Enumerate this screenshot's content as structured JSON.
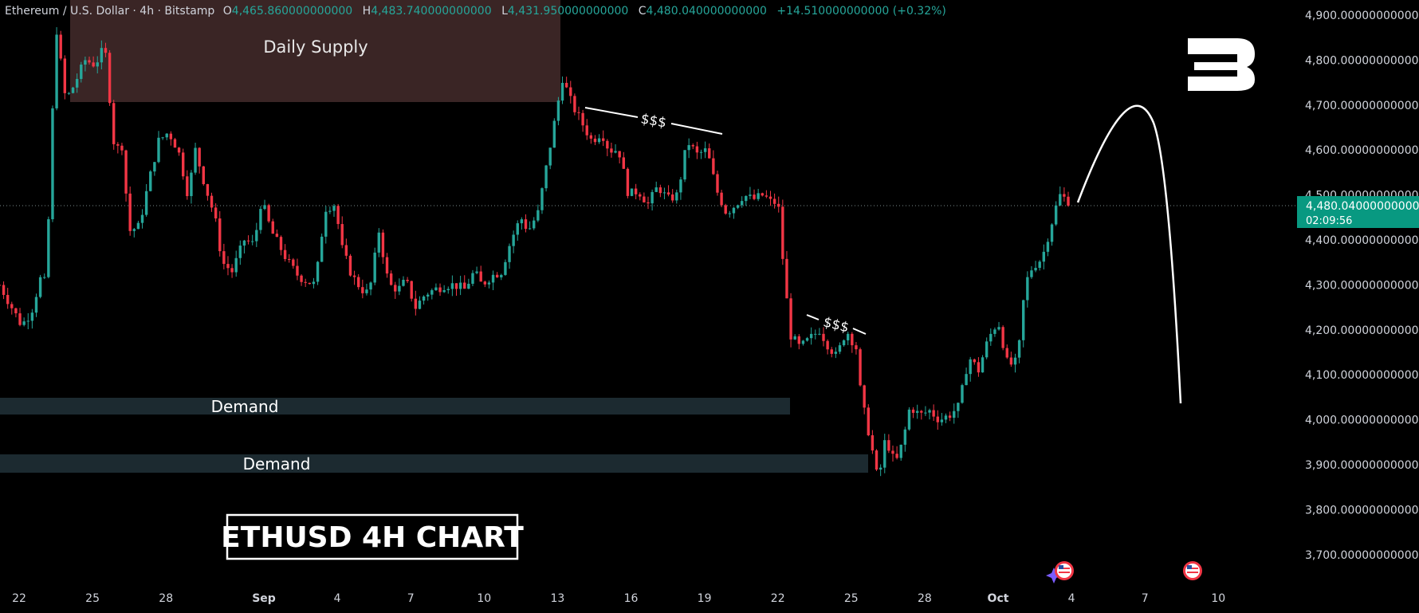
{
  "header": {
    "symbol_title": "Ethereum / U.S. Dollar · 4h · Bitstamp",
    "open_label": "O",
    "open_value": "4,465.860000000000",
    "high_label": "H",
    "high_value": "4,483.740000000000",
    "low_label": "L",
    "low_value": "4,431.950000000000",
    "close_label": "C",
    "close_value": "4,480.040000000000",
    "change": "+14.510000000000 (+0.32%)"
  },
  "price_tag": {
    "price": "4,480.040000000000",
    "countdown": "02:09:56"
  },
  "annotations": {
    "supply_zone": "Daily Supply",
    "demand_upper": "Demand",
    "demand_lower": "Demand",
    "liquidity_upper": "$$$",
    "liquidity_lower": "$$$",
    "chart_label": "ETHUSD 4H CHART"
  },
  "colors": {
    "up": "#26a69a",
    "down": "#f23645",
    "background": "#000000",
    "supply_zone": "#3a2525",
    "demand_zone": "#1c2a30",
    "price_tag": "#089981",
    "text": "#d1d4dc"
  },
  "icons": [
    "brand-logo-icon",
    "us-flag-event-icon",
    "us-flag-event-icon",
    "sparkle-icon"
  ],
  "chart_data": {
    "type": "candlestick",
    "title": "",
    "xlabel": "",
    "ylabel": "",
    "interval": "4h",
    "ylim": [
      3640,
      4940
    ],
    "grid": false,
    "last_price": 4480.04,
    "y_ticks": [
      "4,900.000000000000",
      "4,800.000000000000",
      "4,700.000000000000",
      "4,600.000000000000",
      "4,500.000000000000",
      "4,400.000000000000",
      "4,300.000000000000",
      "4,200.000000000000",
      "4,100.000000000000",
      "4,000.000000000000",
      "3,900.000000000000",
      "3,800.000000000000",
      "3,700.000000000000"
    ],
    "y_tick_values": [
      4900,
      4800,
      4700,
      4600,
      4500,
      4400,
      4300,
      4200,
      4100,
      4000,
      3900,
      3800,
      3700
    ],
    "x_ticks": [
      {
        "label": "22",
        "day": 0
      },
      {
        "label": "25",
        "day": 3
      },
      {
        "label": "28",
        "day": 6
      },
      {
        "label": "Sep",
        "day": 10
      },
      {
        "label": "4",
        "day": 13
      },
      {
        "label": "7",
        "day": 16
      },
      {
        "label": "10",
        "day": 19
      },
      {
        "label": "13",
        "day": 22
      },
      {
        "label": "16",
        "day": 25
      },
      {
        "label": "19",
        "day": 28
      },
      {
        "label": "22",
        "day": 31
      },
      {
        "label": "25",
        "day": 34
      },
      {
        "label": "28",
        "day": 37
      },
      {
        "label": "Oct",
        "day": 40
      },
      {
        "label": "4",
        "day": 43
      },
      {
        "label": "7",
        "day": 46
      },
      {
        "label": "10",
        "day": 49
      }
    ],
    "close_path": [
      [
        -0.8,
        4300
      ],
      [
        0.1,
        4210
      ],
      [
        0.5,
        4240
      ],
      [
        0.9,
        4320
      ],
      [
        1.1,
        4300
      ],
      [
        1.5,
        4880
      ],
      [
        1.9,
        4710
      ],
      [
        2.2,
        4740
      ],
      [
        2.7,
        4800
      ],
      [
        3.1,
        4790
      ],
      [
        3.5,
        4830
      ],
      [
        3.9,
        4600
      ],
      [
        4.2,
        4610
      ],
      [
        4.5,
        4420
      ],
      [
        4.9,
        4430
      ],
      [
        5.3,
        4530
      ],
      [
        5.7,
        4620
      ],
      [
        6.1,
        4640
      ],
      [
        6.5,
        4600
      ],
      [
        6.9,
        4500
      ],
      [
        7.2,
        4600
      ],
      [
        7.6,
        4520
      ],
      [
        8.0,
        4450
      ],
      [
        8.3,
        4350
      ],
      [
        8.7,
        4330
      ],
      [
        9.2,
        4400
      ],
      [
        9.6,
        4390
      ],
      [
        9.9,
        4490
      ],
      [
        10.3,
        4420
      ],
      [
        10.6,
        4390
      ],
      [
        11.0,
        4350
      ],
      [
        11.4,
        4320
      ],
      [
        11.7,
        4310
      ],
      [
        12.1,
        4300
      ],
      [
        12.5,
        4470
      ],
      [
        12.9,
        4480
      ],
      [
        13.2,
        4380
      ],
      [
        13.6,
        4320
      ],
      [
        14.0,
        4290
      ],
      [
        14.3,
        4280
      ],
      [
        14.7,
        4420
      ],
      [
        15.1,
        4300
      ],
      [
        15.5,
        4290
      ],
      [
        15.8,
        4310
      ],
      [
        16.2,
        4250
      ],
      [
        16.6,
        4280
      ],
      [
        17.0,
        4290
      ],
      [
        17.4,
        4300
      ],
      [
        17.8,
        4300
      ],
      [
        18.2,
        4290
      ],
      [
        18.6,
        4330
      ],
      [
        18.9,
        4300
      ],
      [
        19.3,
        4320
      ],
      [
        19.7,
        4330
      ],
      [
        20.1,
        4400
      ],
      [
        20.5,
        4450
      ],
      [
        20.8,
        4420
      ],
      [
        21.2,
        4460
      ],
      [
        21.6,
        4580
      ],
      [
        22.0,
        4700
      ],
      [
        22.2,
        4760
      ],
      [
        22.6,
        4700
      ],
      [
        23.0,
        4660
      ],
      [
        23.4,
        4620
      ],
      [
        23.8,
        4640
      ],
      [
        24.1,
        4600
      ],
      [
        24.5,
        4600
      ],
      [
        24.9,
        4500
      ],
      [
        25.3,
        4510
      ],
      [
        25.7,
        4480
      ],
      [
        26.1,
        4520
      ],
      [
        26.5,
        4490
      ],
      [
        26.9,
        4500
      ],
      [
        27.3,
        4620
      ],
      [
        27.7,
        4590
      ],
      [
        28.1,
        4600
      ],
      [
        28.5,
        4510
      ],
      [
        28.9,
        4460
      ],
      [
        29.3,
        4480
      ],
      [
        29.6,
        4500
      ],
      [
        30.0,
        4490
      ],
      [
        30.4,
        4500
      ],
      [
        30.8,
        4480
      ],
      [
        31.0,
        4490
      ],
      [
        31.2,
        4360
      ],
      [
        31.5,
        4190
      ],
      [
        31.9,
        4160
      ],
      [
        32.3,
        4180
      ],
      [
        32.7,
        4200
      ],
      [
        33.0,
        4170
      ],
      [
        33.4,
        4140
      ],
      [
        33.8,
        4200
      ],
      [
        34.2,
        4160
      ],
      [
        34.4,
        4050
      ],
      [
        34.8,
        3950
      ],
      [
        35.1,
        3860
      ],
      [
        35.4,
        3960
      ],
      [
        35.8,
        3900
      ],
      [
        36.1,
        3950
      ],
      [
        36.4,
        4030
      ],
      [
        36.8,
        4010
      ],
      [
        37.2,
        4020
      ],
      [
        37.6,
        4000
      ],
      [
        38.0,
        4010
      ],
      [
        38.4,
        4030
      ],
      [
        38.8,
        4140
      ],
      [
        39.2,
        4110
      ],
      [
        39.6,
        4180
      ],
      [
        40.0,
        4220
      ],
      [
        40.4,
        4120
      ],
      [
        40.8,
        4130
      ],
      [
        41.1,
        4300
      ],
      [
        41.4,
        4340
      ],
      [
        41.8,
        4360
      ],
      [
        42.1,
        4420
      ],
      [
        42.5,
        4500
      ],
      [
        42.8,
        4490
      ],
      [
        43.0,
        4480.04
      ]
    ]
  }
}
